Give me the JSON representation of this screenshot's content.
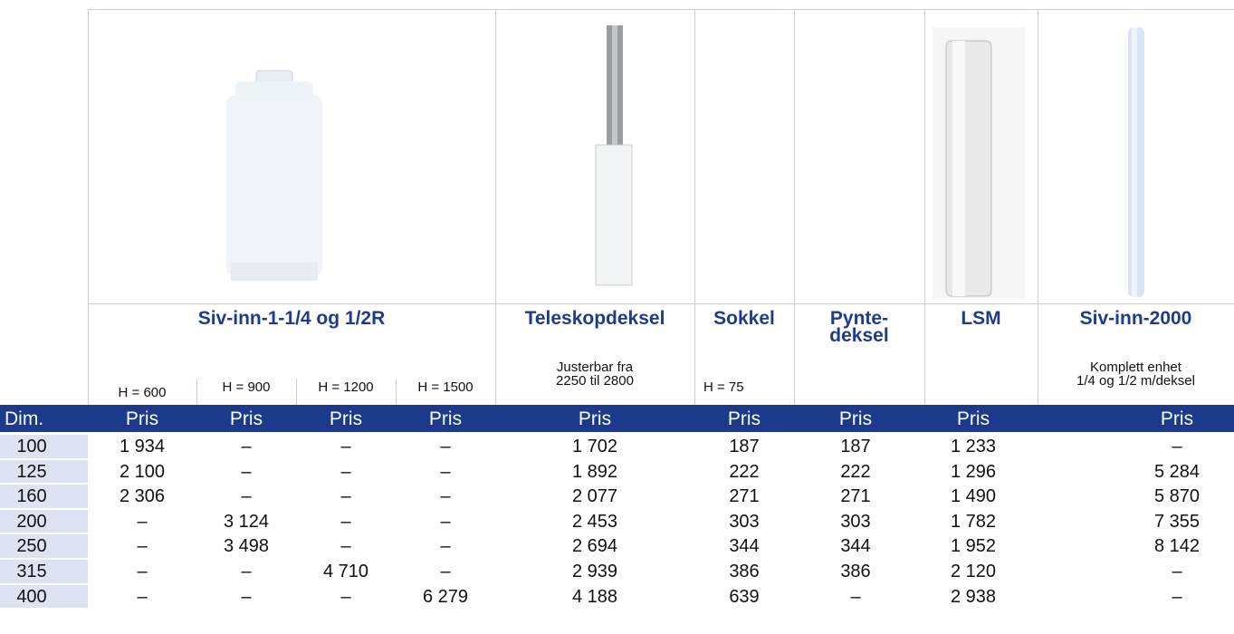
{
  "products": [
    {
      "name": "Siv-inn-1-1/4 og 1/2R",
      "notes": [
        "H = 600",
        "H = 900",
        "H = 1200",
        "H = 1500"
      ]
    },
    {
      "name": "Teleskopdeksel",
      "notes": [
        "Justerbar fra\n2250 til 2800"
      ]
    },
    {
      "name": "Sokkel",
      "notes": [
        "H = 75"
      ]
    },
    {
      "name": "Pynte-\ndeksel",
      "notes": []
    },
    {
      "name": "LSM",
      "notes": []
    },
    {
      "name": "Siv-inn-2000",
      "notes": [
        "Komplett enhet\n1/4 og 1/2 m/deksel"
      ]
    }
  ],
  "table": {
    "header": [
      "Dim.",
      "Pris",
      "Pris",
      "Pris",
      "Pris",
      "Pris",
      "Pris",
      "Pris",
      "Pris",
      "Pris"
    ],
    "rows": [
      [
        "100",
        "1 934",
        "–",
        "–",
        "–",
        "1 702",
        "187",
        "187",
        "1 233",
        "–"
      ],
      [
        "125",
        "2 100",
        "–",
        "–",
        "–",
        "1 892",
        "222",
        "222",
        "1 296",
        "5 284"
      ],
      [
        "160",
        "2 306",
        "–",
        "–",
        "–",
        "2 077",
        "271",
        "271",
        "1 490",
        "5 870"
      ],
      [
        "200",
        "–",
        "3 124",
        "–",
        "–",
        "2 453",
        "303",
        "303",
        "1 782",
        "7 355"
      ],
      [
        "250",
        "–",
        "3 498",
        "–",
        "–",
        "2 694",
        "344",
        "344",
        "1 952",
        "8 142"
      ],
      [
        "315",
        "–",
        "–",
        "4 710",
        "–",
        "2 939",
        "386",
        "386",
        "2 120",
        "–"
      ],
      [
        "400",
        "–",
        "–",
        "–",
        "6 279",
        "4 188",
        "639",
        "–",
        "2 938",
        "–"
      ]
    ]
  }
}
